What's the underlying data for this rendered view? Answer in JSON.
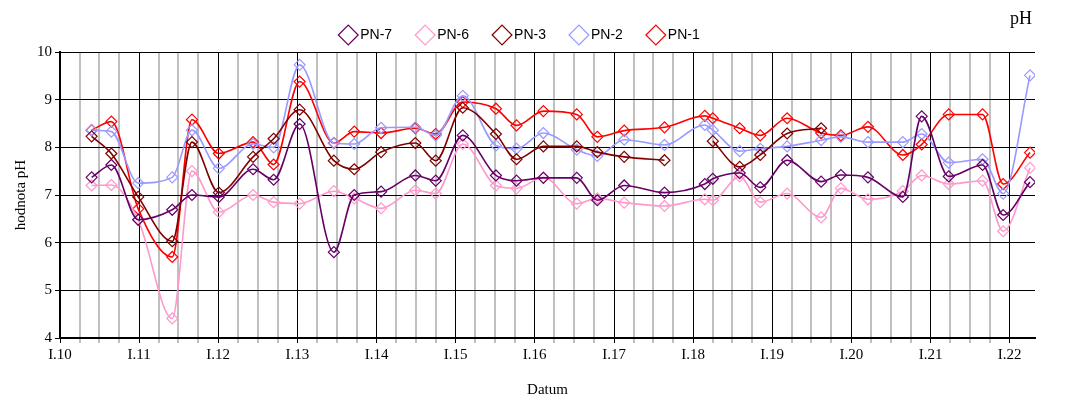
{
  "chart_data": {
    "type": "line",
    "title": "pH",
    "xlabel": "Datum",
    "ylabel": "hodnota pH",
    "x": [
      "2010-05-27",
      "2010-08-26",
      "2010-12-28",
      "2011-06-03",
      "2011-09-02",
      "2012-01-04",
      "2012-06-10",
      "2012-09-13",
      "2013-01-11",
      "2013-06-18",
      "2013-09-20",
      "2014-01-22",
      "2014-06-29",
      "2014-10-01",
      "2015-02-03",
      "2015-07-06",
      "2015-10-09",
      "2016-02-10",
      "2016-07-13",
      "2016-10-16",
      "2017-02-17",
      "2017-08-22",
      "2018-02-24",
      "2018-04-02",
      "2018-08-04",
      "2018-11-07",
      "2019-03-11",
      "2019-08-15",
      "2019-11-14",
      "2020-03-18",
      "2020-08-26",
      "2020-11-21",
      "2021-03-26",
      "2021-08-29",
      "2021-12-02",
      "2022-04-05"
    ],
    "series": [
      {
        "name": "PN-7",
        "color": "#660066",
        "values": [
          7.37,
          7.63,
          6.48,
          6.69,
          7.0,
          6.96,
          7.54,
          7.32,
          8.49,
          5.8,
          7.0,
          7.07,
          7.41,
          7.3,
          8.25,
          7.41,
          7.3,
          7.36,
          7.36,
          6.89,
          7.2,
          7.05,
          7.23,
          7.34,
          7.46,
          7.16,
          7.73,
          7.28,
          7.42,
          7.37,
          6.96,
          8.65,
          7.39,
          7.63,
          6.58,
          7.27
        ]
      },
      {
        "name": "PN-6",
        "color": "#ff99cc",
        "values": [
          7.2,
          7.21,
          6.48,
          4.41,
          7.5,
          6.64,
          7.0,
          6.85,
          6.82,
          7.08,
          6.93,
          6.72,
          7.1,
          7.03,
          8.07,
          7.2,
          7.14,
          7.37,
          6.82,
          6.93,
          6.84,
          6.77,
          6.91,
          6.89,
          7.39,
          6.85,
          7.03,
          6.53,
          7.14,
          6.91,
          7.08,
          7.41,
          7.23,
          7.3,
          6.24,
          7.57
        ]
      },
      {
        "name": "PN-3",
        "color": "#800000",
        "values": [
          8.23,
          7.87,
          6.96,
          6.03,
          8.11,
          7.05,
          7.8,
          8.18,
          8.79,
          7.72,
          7.54,
          7.9,
          8.09,
          7.72,
          8.83,
          8.28,
          7.75,
          8.02,
          8.02,
          7.9,
          7.8,
          7.73,
          null,
          8.13,
          7.59,
          7.84,
          8.29,
          8.4,
          null,
          null,
          null,
          null,
          null,
          null,
          null,
          null
        ]
      },
      {
        "name": "PN-2",
        "color": "#9999ff",
        "values": [
          8.36,
          8.33,
          7.25,
          7.37,
          8.36,
          7.56,
          8.07,
          8.0,
          9.73,
          8.09,
          8.07,
          8.41,
          8.42,
          8.25,
          9.08,
          8.04,
          7.97,
          8.3,
          7.95,
          7.82,
          8.16,
          8.05,
          8.47,
          8.36,
          7.92,
          7.97,
          8.02,
          8.15,
          8.22,
          8.11,
          8.11,
          8.28,
          7.68,
          7.75,
          7.03,
          9.51
        ]
      },
      {
        "name": "PN-1",
        "color": "#ff0000",
        "values": [
          8.36,
          8.54,
          6.71,
          5.7,
          8.58,
          7.87,
          8.11,
          7.64,
          9.38,
          8.09,
          8.33,
          8.3,
          8.4,
          8.28,
          8.95,
          8.81,
          8.46,
          8.76,
          8.69,
          8.22,
          8.35,
          8.42,
          8.66,
          8.61,
          8.4,
          8.25,
          8.61,
          8.3,
          8.25,
          8.43,
          7.84,
          8.06,
          8.69,
          8.69,
          7.23,
          7.89
        ]
      }
    ],
    "xlim": [
      "2010-01-01",
      "2022-04-28"
    ],
    "xticks": [
      {
        "value": "2010-01-01",
        "label": "I.10"
      },
      {
        "value": "2010-04-01",
        "label": null
      },
      {
        "value": "2010-07-01",
        "label": null
      },
      {
        "value": "2010-10-01",
        "label": null
      },
      {
        "value": "2011-01-01",
        "label": "I.11"
      },
      {
        "value": "2011-04-01",
        "label": null
      },
      {
        "value": "2011-07-01",
        "label": null
      },
      {
        "value": "2011-10-01",
        "label": null
      },
      {
        "value": "2012-01-01",
        "label": "I.12"
      },
      {
        "value": "2012-04-01",
        "label": null
      },
      {
        "value": "2012-07-01",
        "label": null
      },
      {
        "value": "2012-10-01",
        "label": null
      },
      {
        "value": "2013-01-01",
        "label": "I.13"
      },
      {
        "value": "2013-04-01",
        "label": null
      },
      {
        "value": "2013-07-01",
        "label": null
      },
      {
        "value": "2013-10-01",
        "label": null
      },
      {
        "value": "2014-01-01",
        "label": "I.14"
      },
      {
        "value": "2014-04-01",
        "label": null
      },
      {
        "value": "2014-07-01",
        "label": null
      },
      {
        "value": "2014-10-01",
        "label": null
      },
      {
        "value": "2015-01-01",
        "label": "I.15"
      },
      {
        "value": "2015-04-01",
        "label": null
      },
      {
        "value": "2015-07-01",
        "label": null
      },
      {
        "value": "2015-10-01",
        "label": null
      },
      {
        "value": "2016-01-01",
        "label": "I.16"
      },
      {
        "value": "2016-04-01",
        "label": null
      },
      {
        "value": "2016-07-01",
        "label": null
      },
      {
        "value": "2016-10-01",
        "label": null
      },
      {
        "value": "2017-01-01",
        "label": "I.17"
      },
      {
        "value": "2017-04-01",
        "label": null
      },
      {
        "value": "2017-07-01",
        "label": null
      },
      {
        "value": "2017-10-01",
        "label": null
      },
      {
        "value": "2018-01-01",
        "label": "I.18"
      },
      {
        "value": "2018-04-01",
        "label": null
      },
      {
        "value": "2018-07-01",
        "label": null
      },
      {
        "value": "2018-10-01",
        "label": null
      },
      {
        "value": "2019-01-01",
        "label": "I.19"
      },
      {
        "value": "2019-04-01",
        "label": null
      },
      {
        "value": "2019-07-01",
        "label": null
      },
      {
        "value": "2019-10-01",
        "label": null
      },
      {
        "value": "2020-01-01",
        "label": "I.20"
      },
      {
        "value": "2020-04-01",
        "label": null
      },
      {
        "value": "2020-07-01",
        "label": null
      },
      {
        "value": "2020-10-01",
        "label": null
      },
      {
        "value": "2021-01-01",
        "label": "I.21"
      },
      {
        "value": "2021-04-01",
        "label": null
      },
      {
        "value": "2021-07-01",
        "label": null
      },
      {
        "value": "2021-10-01",
        "label": null
      },
      {
        "value": "2022-01-01",
        "label": "I.22"
      }
    ],
    "ylim": [
      4,
      10
    ],
    "yticks": [
      4,
      5,
      6,
      7,
      8,
      9,
      10
    ],
    "grid": true,
    "legend": "top",
    "marker": "diamond",
    "line_style": "solid"
  }
}
